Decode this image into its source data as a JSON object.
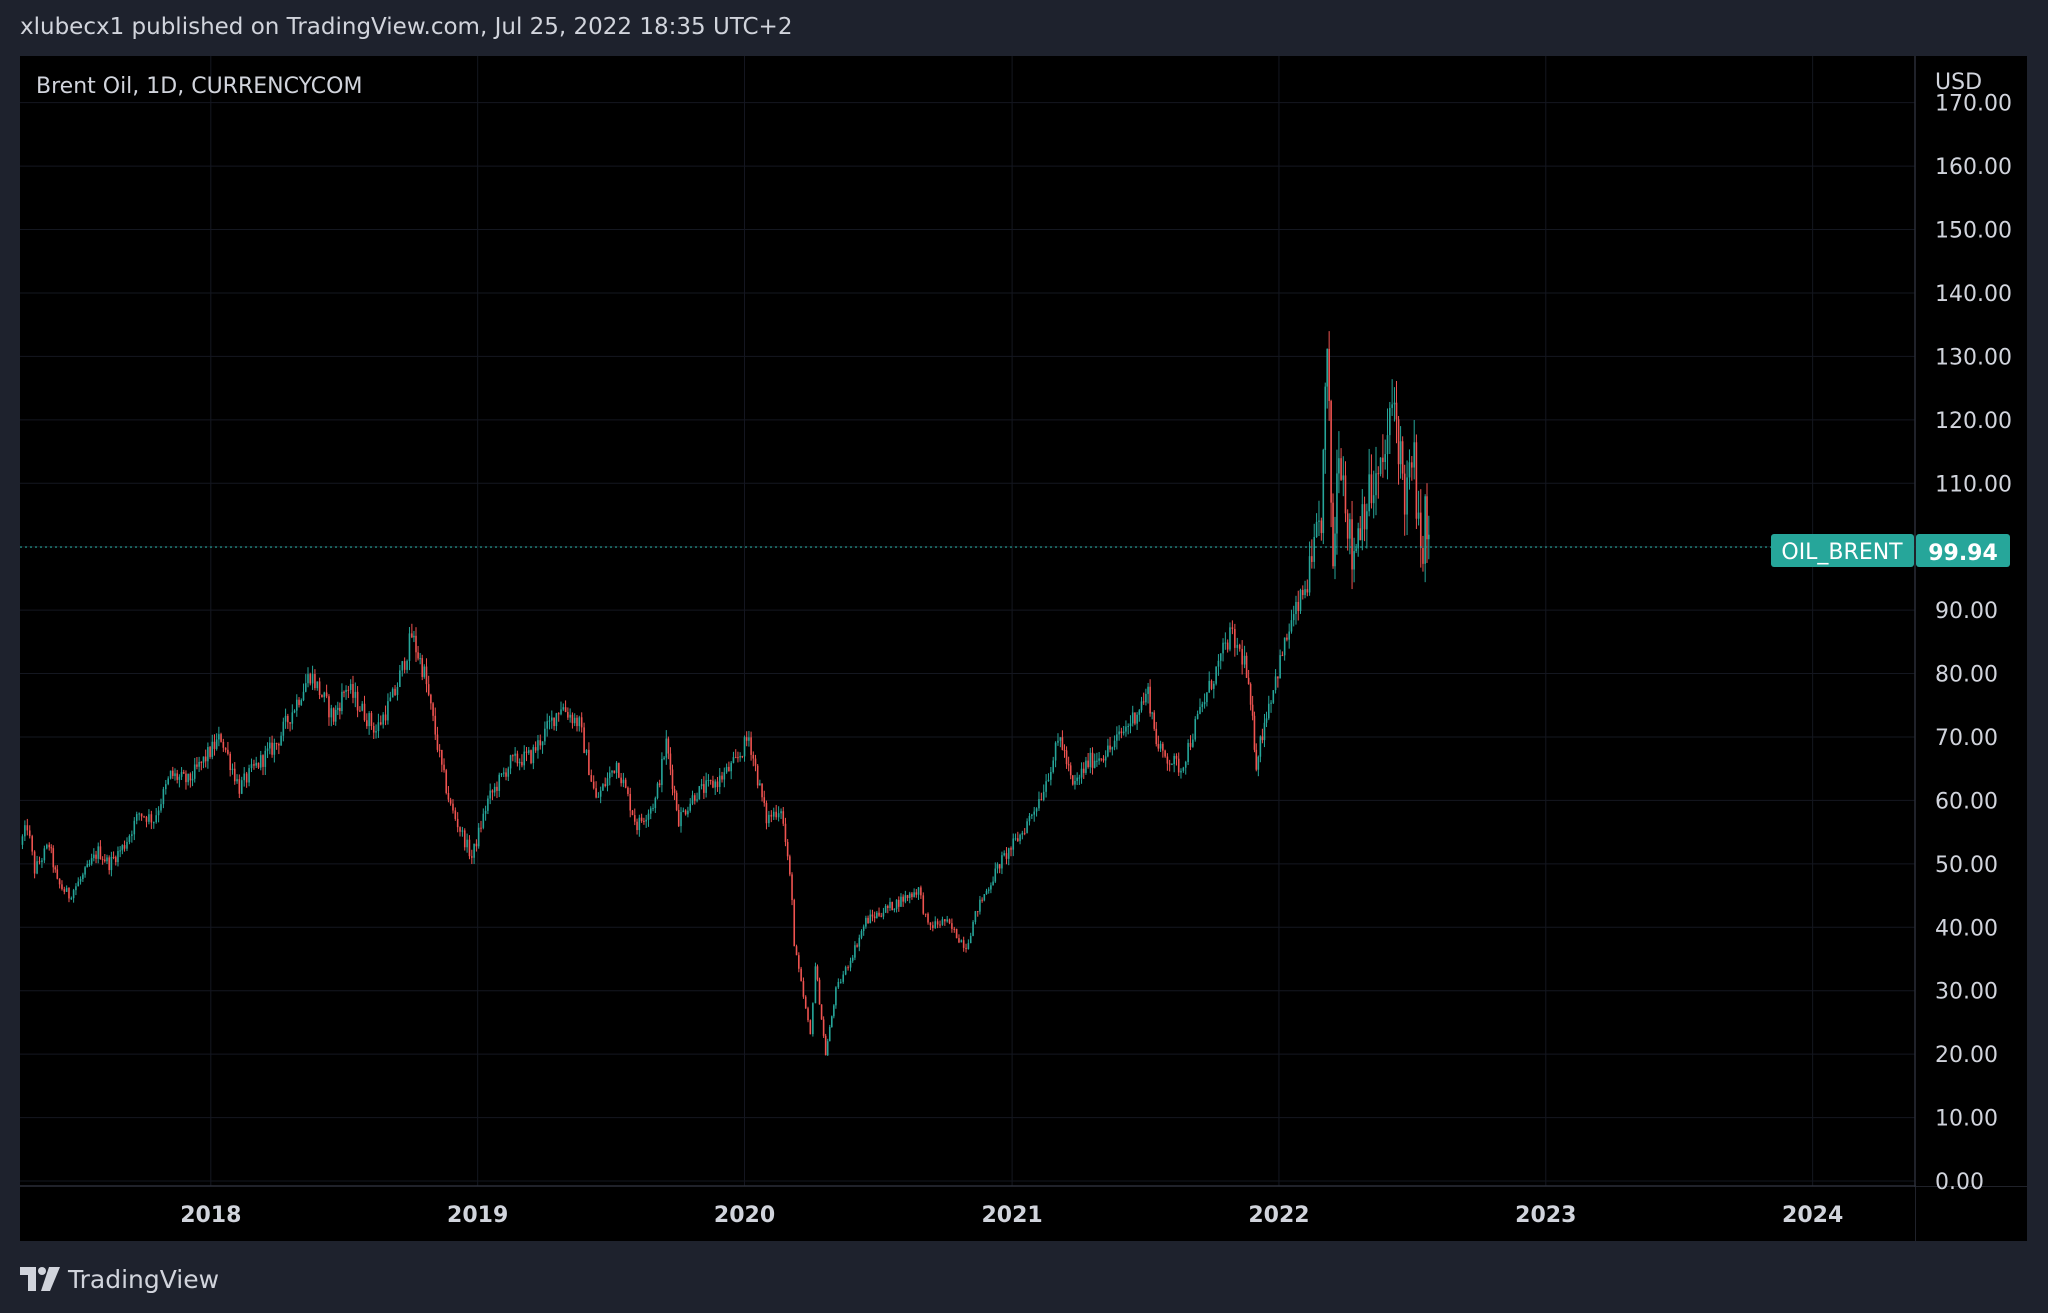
{
  "header": {
    "published_text": "xlubecx1 published on TradingView.com, Jul 25, 2022 18:35 UTC+2"
  },
  "footer": {
    "brand": "TradingView",
    "logo_icon": "tradingview-logo-icon"
  },
  "colors": {
    "background": "#000000",
    "frame": "#1e222d",
    "text": "#d1d4dc",
    "up": "#26a69a",
    "down": "#ef5350",
    "last_price_badge": "#26a69a"
  },
  "chart_data": {
    "type": "candlestick",
    "title": "Brent Oil, 1D, CURRENCYCOM",
    "currency": "USD",
    "symbol_label": "OIL_BRENT",
    "last_price": 99.94,
    "last_price_label": "99.94",
    "ylim": [
      0,
      172
    ],
    "y_ticks": [
      "0.00",
      "10.00",
      "20.00",
      "30.00",
      "40.00",
      "50.00",
      "60.00",
      "70.00",
      "80.00",
      "90.00",
      "110.00",
      "120.00",
      "130.00",
      "140.00",
      "150.00",
      "160.00",
      "170.00"
    ],
    "y_tick_values": [
      0,
      10,
      20,
      30,
      40,
      50,
      60,
      70,
      80,
      90,
      110,
      120,
      130,
      140,
      150,
      160,
      170
    ],
    "x_ticks": [
      "2018",
      "2019",
      "2020",
      "2021",
      "2022",
      "2023",
      "2024"
    ],
    "xlim": [
      "2017-04-15",
      "2024-05-20"
    ],
    "grid": true,
    "price_path": [
      {
        "date": "2017-04-15",
        "close": 53
      },
      {
        "date": "2017-04-25",
        "close": 56
      },
      {
        "date": "2017-05-05",
        "close": 49
      },
      {
        "date": "2017-05-25",
        "close": 53
      },
      {
        "date": "2017-06-05",
        "close": 47
      },
      {
        "date": "2017-06-21",
        "close": 45
      },
      {
        "date": "2017-07-10",
        "close": 48
      },
      {
        "date": "2017-07-31",
        "close": 52
      },
      {
        "date": "2017-08-15",
        "close": 50
      },
      {
        "date": "2017-09-05",
        "close": 53
      },
      {
        "date": "2017-09-25",
        "close": 58
      },
      {
        "date": "2017-10-15",
        "close": 57
      },
      {
        "date": "2017-11-07",
        "close": 64
      },
      {
        "date": "2017-12-01",
        "close": 63
      },
      {
        "date": "2018-01-15",
        "close": 70
      },
      {
        "date": "2018-02-09",
        "close": 62
      },
      {
        "date": "2018-03-01",
        "close": 65
      },
      {
        "date": "2018-04-01",
        "close": 69
      },
      {
        "date": "2018-05-17",
        "close": 80
      },
      {
        "date": "2018-06-18",
        "close": 73
      },
      {
        "date": "2018-07-05",
        "close": 78
      },
      {
        "date": "2018-08-15",
        "close": 71
      },
      {
        "date": "2018-09-10",
        "close": 77
      },
      {
        "date": "2018-10-03",
        "close": 86
      },
      {
        "date": "2018-10-20",
        "close": 80
      },
      {
        "date": "2018-11-13",
        "close": 65
      },
      {
        "date": "2018-11-25",
        "close": 59
      },
      {
        "date": "2018-12-24",
        "close": 51
      },
      {
        "date": "2019-01-15",
        "close": 60
      },
      {
        "date": "2019-02-15",
        "close": 66
      },
      {
        "date": "2019-03-15",
        "close": 67
      },
      {
        "date": "2019-04-25",
        "close": 75
      },
      {
        "date": "2019-05-20",
        "close": 72
      },
      {
        "date": "2019-06-12",
        "close": 60
      },
      {
        "date": "2019-07-10",
        "close": 66
      },
      {
        "date": "2019-08-07",
        "close": 56
      },
      {
        "date": "2019-09-01",
        "close": 60
      },
      {
        "date": "2019-09-16",
        "close": 69
      },
      {
        "date": "2019-10-03",
        "close": 57
      },
      {
        "date": "2019-10-25",
        "close": 61
      },
      {
        "date": "2019-11-25",
        "close": 63
      },
      {
        "date": "2019-12-20",
        "close": 66
      },
      {
        "date": "2020-01-07",
        "close": 70
      },
      {
        "date": "2020-01-31",
        "close": 57
      },
      {
        "date": "2020-02-20",
        "close": 59
      },
      {
        "date": "2020-03-06",
        "close": 45
      },
      {
        "date": "2020-03-09",
        "close": 37
      },
      {
        "date": "2020-03-31",
        "close": 23
      },
      {
        "date": "2020-04-07",
        "close": 34
      },
      {
        "date": "2020-04-21",
        "close": 20
      },
      {
        "date": "2020-05-05",
        "close": 30
      },
      {
        "date": "2020-05-25",
        "close": 35
      },
      {
        "date": "2020-06-15",
        "close": 41
      },
      {
        "date": "2020-07-15",
        "close": 43
      },
      {
        "date": "2020-08-26",
        "close": 46
      },
      {
        "date": "2020-09-08",
        "close": 40
      },
      {
        "date": "2020-10-01",
        "close": 41
      },
      {
        "date": "2020-10-30",
        "close": 37
      },
      {
        "date": "2020-11-15",
        "close": 43
      },
      {
        "date": "2020-12-15",
        "close": 50
      },
      {
        "date": "2021-01-15",
        "close": 55
      },
      {
        "date": "2021-02-10",
        "close": 61
      },
      {
        "date": "2021-03-08",
        "close": 70
      },
      {
        "date": "2021-03-25",
        "close": 62
      },
      {
        "date": "2021-04-15",
        "close": 66
      },
      {
        "date": "2021-05-15",
        "close": 68
      },
      {
        "date": "2021-06-15",
        "close": 73
      },
      {
        "date": "2021-07-06",
        "close": 77
      },
      {
        "date": "2021-07-20",
        "close": 68
      },
      {
        "date": "2021-08-20",
        "close": 65
      },
      {
        "date": "2021-09-15",
        "close": 74
      },
      {
        "date": "2021-10-26",
        "close": 86
      },
      {
        "date": "2021-11-15",
        "close": 82
      },
      {
        "date": "2021-11-26",
        "close": 72
      },
      {
        "date": "2021-12-01",
        "close": 66
      },
      {
        "date": "2021-12-15",
        "close": 74
      },
      {
        "date": "2022-01-15",
        "close": 87
      },
      {
        "date": "2022-02-15",
        "close": 96
      },
      {
        "date": "2022-02-28",
        "close": 105
      },
      {
        "date": "2022-03-08",
        "close": 130
      },
      {
        "date": "2022-03-16",
        "close": 97
      },
      {
        "date": "2022-03-24",
        "close": 118
      },
      {
        "date": "2022-04-11",
        "close": 98
      },
      {
        "date": "2022-04-25",
        "close": 106
      },
      {
        "date": "2022-05-20",
        "close": 111
      },
      {
        "date": "2022-06-08",
        "close": 123
      },
      {
        "date": "2022-06-22",
        "close": 108
      },
      {
        "date": "2022-07-05",
        "close": 113
      },
      {
        "date": "2022-07-14",
        "close": 97
      },
      {
        "date": "2022-07-20",
        "close": 105
      },
      {
        "date": "2022-07-25",
        "close": 99.94
      }
    ]
  }
}
